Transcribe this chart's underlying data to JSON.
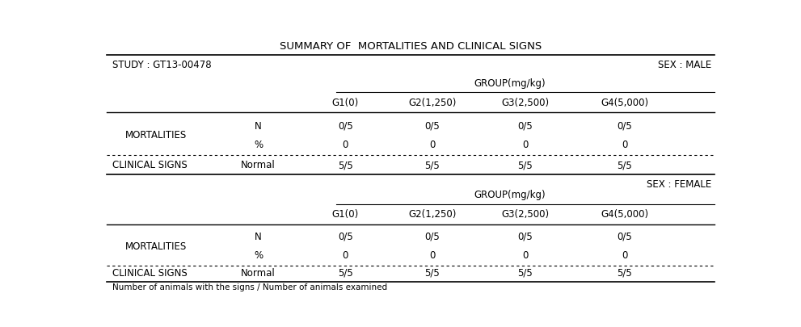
{
  "title": "SUMMARY OF  MORTALITIES AND CLINICAL SIGNS",
  "study": "STUDY : GT13-00478",
  "sex_male": "SEX : MALE",
  "sex_female": "SEX : FEMALE",
  "group_label": "GROUP(mg/kg)",
  "groups": [
    "G1(0)",
    "G2(1,250)",
    "G3(2,500)",
    "G4(5,000)"
  ],
  "mortality_n": [
    "0/5",
    "0/5",
    "0/5",
    "0/5"
  ],
  "mortality_pct": [
    "0",
    "0",
    "0",
    "0"
  ],
  "clinical_normal": [
    "5/5",
    "5/5",
    "5/5",
    "5/5"
  ],
  "footnote": "Number of animals with the signs / Number of animals examined",
  "bg_color": "#ffffff",
  "text_color": "#000000",
  "font_size": 8.5,
  "title_font_size": 9.5,
  "col_cat": 0.02,
  "col_sub": 0.255,
  "col_g1": 0.395,
  "col_g2": 0.535,
  "col_g3": 0.685,
  "col_g4": 0.845
}
